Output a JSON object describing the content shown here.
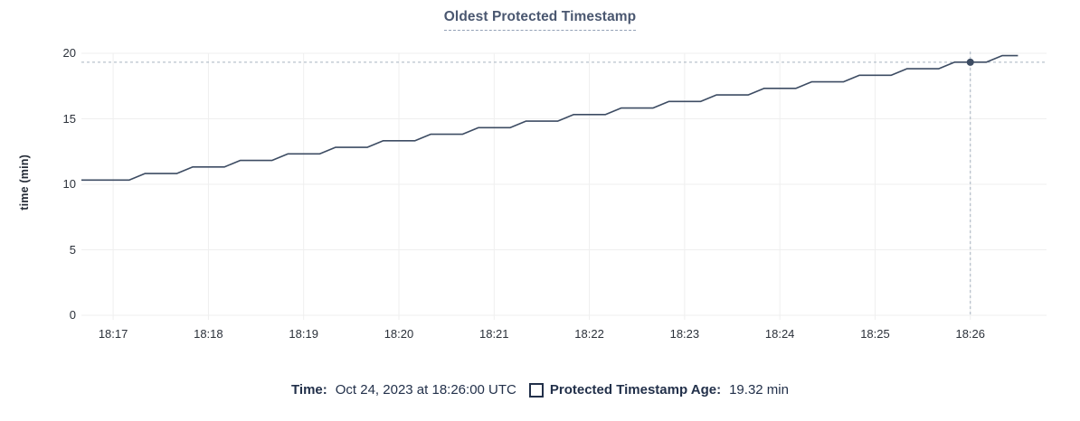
{
  "chart": {
    "title": "Oldest Protected Timestamp",
    "y_axis_label": "time (min)"
  },
  "legend": {
    "time_label": "Time:",
    "time_value": "Oct 24, 2023 at 18:26:00 UTC",
    "series_label": "Protected Timestamp Age:",
    "series_value": "19.32 min"
  },
  "chart_data": {
    "type": "line",
    "title": "Oldest Protected Timestamp",
    "xlabel": "",
    "ylabel": "time (min)",
    "ylim": [
      0,
      20
    ],
    "y_ticks": [
      0,
      5,
      10,
      15,
      20
    ],
    "x_ticks": [
      "18:17",
      "18:18",
      "18:19",
      "18:20",
      "18:21",
      "18:22",
      "18:23",
      "18:24",
      "18:25",
      "18:26"
    ],
    "x_domain": {
      "start": "18:16:40",
      "end": "18:26:48",
      "total_seconds": 608
    },
    "sample_interval_seconds": 10,
    "grid": true,
    "legend_position": "bottom",
    "series": [
      {
        "name": "Protected Timestamp Age",
        "unit": "min",
        "values": [
          10.32,
          10.32,
          10.32,
          10.32,
          10.82,
          10.82,
          10.82,
          11.32,
          11.32,
          11.32,
          11.82,
          11.82,
          11.82,
          12.32,
          12.32,
          12.32,
          12.82,
          12.82,
          12.82,
          13.32,
          13.32,
          13.32,
          13.82,
          13.82,
          13.82,
          14.32,
          14.32,
          14.32,
          14.82,
          14.82,
          14.82,
          15.32,
          15.32,
          15.32,
          15.82,
          15.82,
          15.82,
          16.32,
          16.32,
          16.32,
          16.82,
          16.82,
          16.82,
          17.32,
          17.32,
          17.32,
          17.82,
          17.82,
          17.82,
          18.32,
          18.32,
          18.32,
          18.82,
          18.82,
          18.82,
          19.32,
          19.32,
          19.32,
          19.82,
          19.82
        ]
      }
    ],
    "hover": {
      "time": "18:26:00",
      "seconds_from_start": 560,
      "value": 19.32
    },
    "colors": {
      "line": "#3d4c63",
      "point": "#3d4c63",
      "grid": "#efefef",
      "crosshair": "#a6b3c0",
      "title": "#4a5770",
      "axis_text": "#2b313a",
      "legend_text": "#22304a"
    }
  }
}
